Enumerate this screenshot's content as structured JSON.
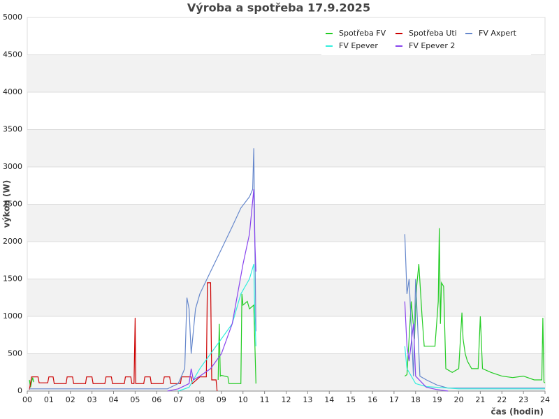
{
  "chart_data": {
    "type": "line",
    "title": "Výroba a spotřeba 17.9.2025",
    "x_label": "čas (hodin)",
    "y_label": "výkon (W)",
    "xlim": [
      0,
      24
    ],
    "ylim": [
      0,
      5000
    ],
    "xticks": [
      {
        "value": 0,
        "label": "00"
      },
      {
        "value": 1,
        "label": "01"
      },
      {
        "value": 2,
        "label": "02"
      },
      {
        "value": 3,
        "label": "03"
      },
      {
        "value": 4,
        "label": "04"
      },
      {
        "value": 5,
        "label": "05"
      },
      {
        "value": 6,
        "label": "06"
      },
      {
        "value": 7,
        "label": "07"
      },
      {
        "value": 8,
        "label": "08"
      },
      {
        "value": 9,
        "label": "09"
      },
      10,
      11,
      12,
      13,
      14,
      15,
      16,
      17,
      18,
      19,
      20,
      21,
      22,
      23,
      24
    ],
    "yticks": [
      0,
      500,
      1000,
      1500,
      2000,
      2500,
      3000,
      3500,
      4000,
      4500,
      5000
    ],
    "grid": true,
    "banded": true,
    "legend": "upper right",
    "series": [
      {
        "name": "Spotřeba FV",
        "color": "#22cc22",
        "x": [
          0.1,
          0.15,
          0.25,
          0.3,
          8.8,
          8.85,
          8.9,
          8.95,
          9.0,
          9.3,
          9.35,
          9.9,
          9.95,
          10.0,
          10.2,
          10.3,
          10.5,
          10.6,
          10.62,
          17.5,
          17.6,
          17.8,
          17.95,
          18.05,
          18.15,
          18.3,
          18.4,
          18.9,
          19.05,
          19.1,
          19.15,
          19.2,
          19.3,
          19.4,
          19.7,
          20.0,
          20.15,
          20.2,
          20.3,
          20.4,
          20.6,
          20.9,
          21.0,
          21.1,
          21.5,
          22.0,
          22.5,
          23.0,
          23.5,
          23.85,
          23.9,
          23.95,
          24.0
        ],
        "values": [
          150,
          50,
          180,
          120,
          null,
          150,
          900,
          200,
          210,
          190,
          100,
          100,
          1300,
          1150,
          1200,
          1100,
          1150,
          100,
          null,
          200,
          220,
          1200,
          700,
          1400,
          1700,
          1000,
          600,
          600,
          1200,
          2180,
          900,
          1450,
          1400,
          300,
          250,
          300,
          1050,
          700,
          500,
          400,
          300,
          300,
          1000,
          300,
          250,
          200,
          180,
          200,
          150,
          150,
          980,
          120,
          110
        ]
      },
      {
        "name": "Spotřeba Uti",
        "color": "#cc0000",
        "x": [
          0.1,
          0.2,
          0.5,
          0.55,
          0.95,
          1.0,
          1.2,
          1.25,
          1.8,
          1.85,
          2.1,
          2.15,
          2.7,
          2.75,
          3.0,
          3.05,
          3.6,
          3.65,
          3.9,
          3.95,
          4.5,
          4.55,
          4.8,
          4.85,
          4.95,
          5.0,
          5.03,
          5.4,
          5.45,
          5.7,
          5.75,
          6.3,
          6.35,
          6.6,
          6.65,
          7.1,
          7.15,
          7.6,
          7.65,
          8.0,
          8.3,
          8.35,
          8.5,
          8.55,
          8.75,
          8.8
        ],
        "values": [
          20,
          190,
          190,
          110,
          110,
          190,
          190,
          100,
          100,
          190,
          190,
          100,
          100,
          190,
          190,
          100,
          100,
          190,
          190,
          100,
          100,
          190,
          190,
          100,
          100,
          980,
          100,
          100,
          190,
          190,
          100,
          100,
          190,
          190,
          100,
          100,
          190,
          190,
          100,
          190,
          190,
          1450,
          1450,
          150,
          150,
          0
        ]
      },
      {
        "name": "FV Axpert",
        "color": "#6688cc",
        "x": [
          0.1,
          3.0,
          6.5,
          7.0,
          7.3,
          7.4,
          7.5,
          7.6,
          7.8,
          8.0,
          8.5,
          9.0,
          9.5,
          9.9,
          10.3,
          10.45,
          10.5,
          10.55,
          10.6,
          10.65,
          17.5,
          17.6,
          17.7,
          17.9,
          18.0,
          18.2,
          18.5,
          19.0,
          19.5,
          20.0,
          22.0,
          24.0
        ],
        "values": [
          30,
          30,
          30,
          100,
          300,
          1250,
          1100,
          500,
          1100,
          1300,
          1600,
          1900,
          2200,
          2450,
          2600,
          2700,
          3250,
          2000,
          800,
          null,
          2100,
          1300,
          1500,
          200,
          1500,
          200,
          150,
          80,
          40,
          40,
          40,
          40
        ]
      },
      {
        "name": "FV Epever",
        "color": "#33eedd",
        "x": [
          7.0,
          7.5,
          8.0,
          8.5,
          9.0,
          9.5,
          9.9,
          10.3,
          10.5,
          10.55,
          10.6,
          10.65,
          17.5,
          17.6,
          17.8,
          18.0,
          18.5,
          19.0,
          20.0,
          22.0,
          24.0
        ],
        "values": [
          0,
          50,
          300,
          500,
          700,
          900,
          1300,
          1500,
          1700,
          1000,
          600,
          null,
          600,
          300,
          200,
          100,
          60,
          50,
          30,
          30,
          30
        ]
      },
      {
        "name": "FV Epever 2",
        "color": "#8844ee",
        "x": [
          6.5,
          7.0,
          7.5,
          7.6,
          7.7,
          8.0,
          8.5,
          9.0,
          9.5,
          10.0,
          10.3,
          10.5,
          10.55,
          10.6,
          10.65,
          17.5,
          17.6,
          17.7,
          17.9,
          18.0,
          18.5,
          19.0,
          19.5
        ],
        "values": [
          0,
          30,
          100,
          300,
          150,
          200,
          300,
          500,
          900,
          1700,
          2100,
          2700,
          2000,
          1600,
          null,
          1200,
          600,
          400,
          900,
          200,
          50,
          20,
          0
        ]
      }
    ]
  }
}
